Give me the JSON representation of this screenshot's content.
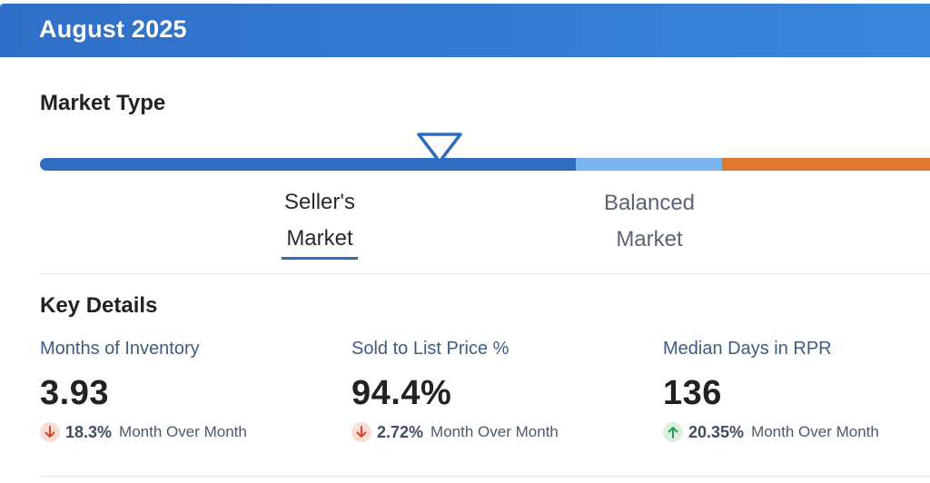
{
  "header": {
    "title": "August 2025",
    "accent_color": "#2f6fc7"
  },
  "market_type": {
    "title": "Market Type",
    "segments": [
      {
        "name": "seller",
        "color": "#2e6bc2"
      },
      {
        "name": "balanced",
        "color": "#79b4ef"
      },
      {
        "name": "buyer",
        "color": "#e0782f"
      }
    ],
    "indicator_icon": "triangle-down-icon",
    "current_label_line1": "Seller's",
    "current_label_line2": "Market",
    "balanced_label_line1": "Balanced",
    "balanced_label_line2": "Market"
  },
  "key_details": {
    "title": "Key Details",
    "items": [
      {
        "label": "Months of Inventory",
        "value": "3.93",
        "direction": "down",
        "direction_icon": "arrow-down-icon",
        "change": "18.3%",
        "change_label": "Month Over Month"
      },
      {
        "label": "Sold to List Price %",
        "value": "94.4%",
        "direction": "down",
        "direction_icon": "arrow-down-icon",
        "change": "2.72%",
        "change_label": "Month Over Month"
      },
      {
        "label": "Median Days in RPR",
        "value": "136",
        "direction": "up",
        "direction_icon": "arrow-up-icon",
        "change": "20.35%",
        "change_label": "Month Over Month"
      }
    ],
    "down_color": "#d9432a",
    "up_color": "#2e9e4e"
  }
}
